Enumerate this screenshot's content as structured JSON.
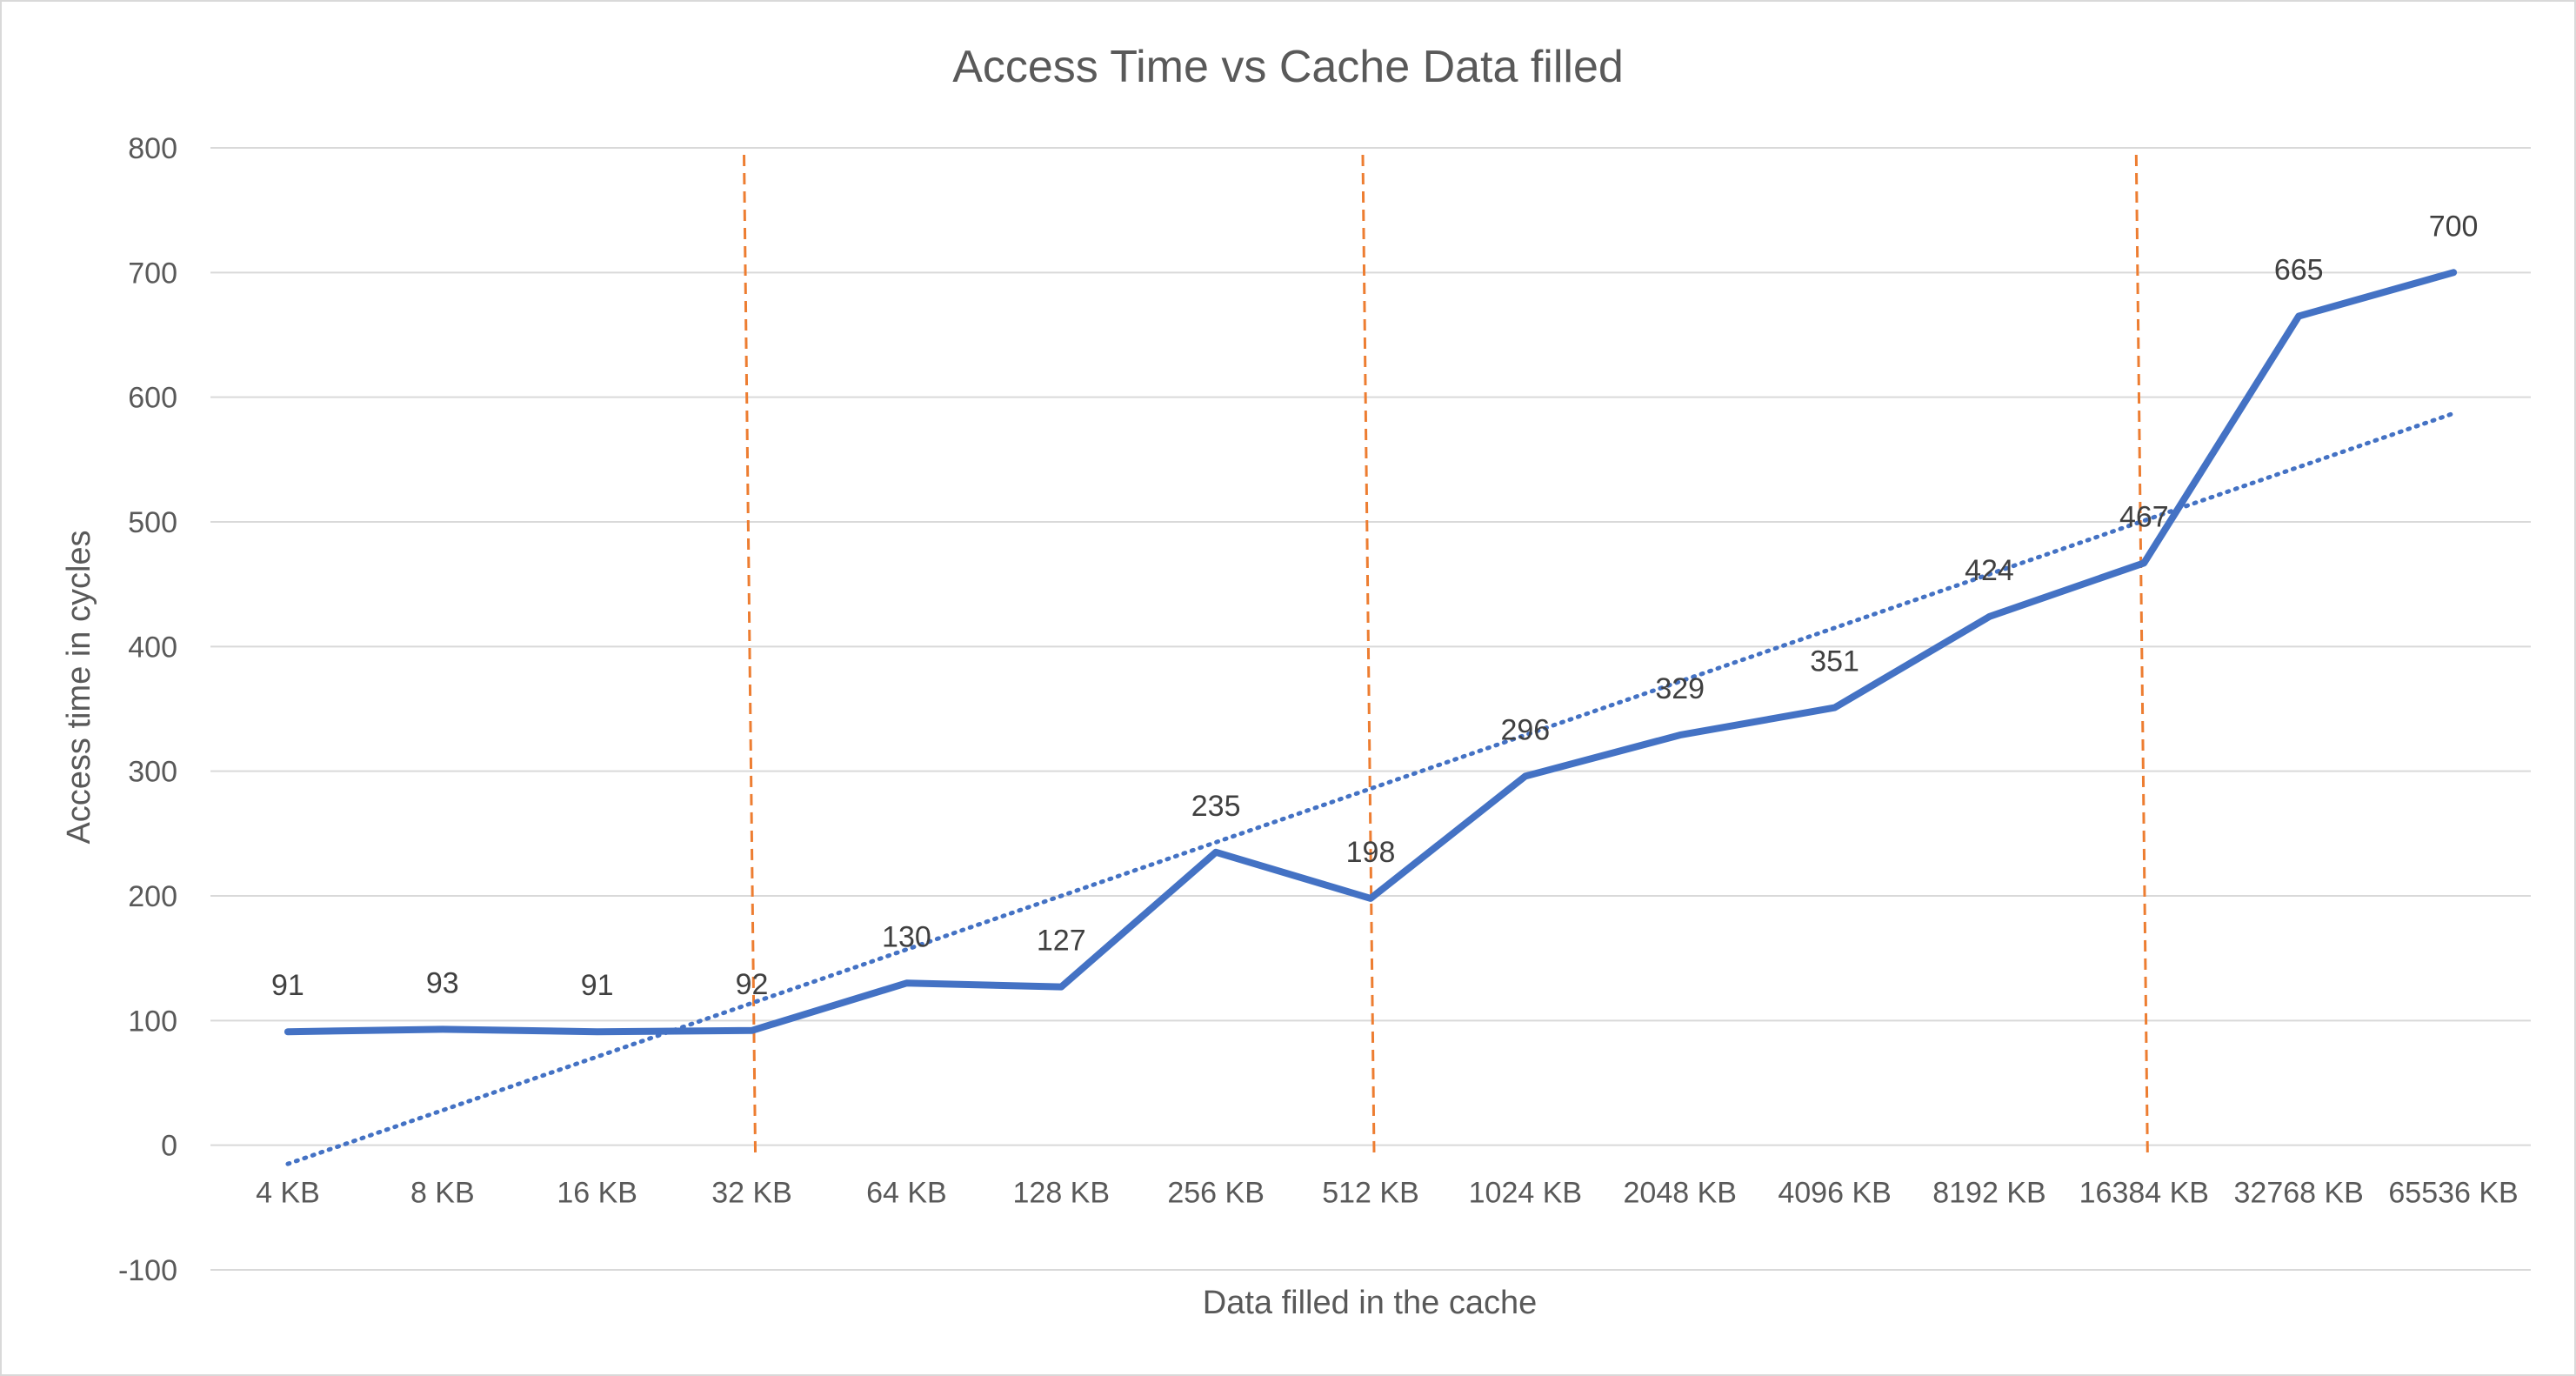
{
  "chart_data": {
    "type": "line",
    "title": "Access Time vs Cache Data filled",
    "xlabel": "Data filled  in the cache",
    "ylabel": "Access time in cycles",
    "categories": [
      "4 KB",
      "8 KB",
      "16 KB",
      "32 KB",
      "64 KB",
      "128 KB",
      "256 KB",
      "512 KB",
      "1024 KB",
      "2048 KB",
      "4096 KB",
      "8192 KB",
      "16384 KB",
      "32768 KB",
      "65536 KB"
    ],
    "series": [
      {
        "values": [
          91,
          93,
          91,
          92,
          130,
          127,
          235,
          198,
          296,
          329,
          351,
          424,
          467,
          665,
          700
        ],
        "color": "#4472C4"
      }
    ],
    "trendline": {
      "type": "linear",
      "start": -15,
      "end": 587,
      "style": "dotted",
      "color": "#4472C4"
    },
    "reference_lines": {
      "at_categories": [
        "32 KB",
        "512 KB",
        "16384 KB"
      ],
      "style": "dashed",
      "color": "#ED7D31"
    },
    "ylim": [
      -100,
      800
    ],
    "yticks": [
      -100,
      0,
      100,
      200,
      300,
      400,
      500,
      600,
      700,
      800
    ],
    "grid": true,
    "legend": "none"
  }
}
